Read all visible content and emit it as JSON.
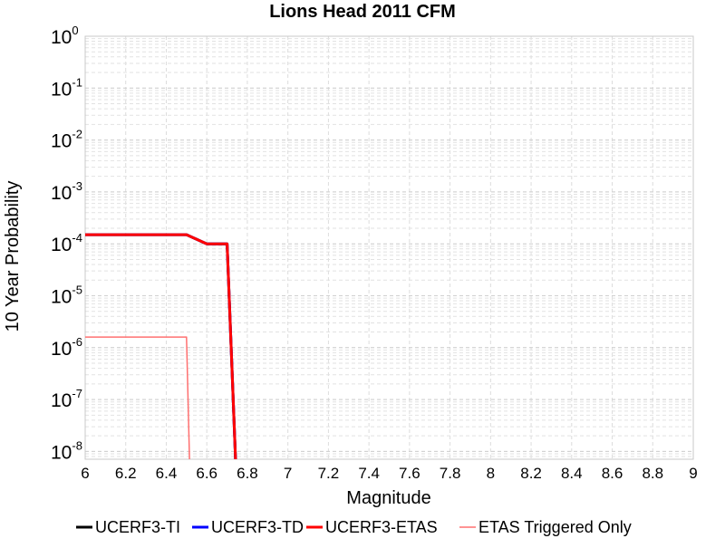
{
  "chart_data": {
    "type": "line",
    "title": "Lions Head 2011 CFM",
    "xlabel": "Magnitude",
    "ylabel": "10 Year Probability",
    "xlim": [
      6,
      9
    ],
    "ylim_log10": [
      -8.15,
      0
    ],
    "yscale": "log",
    "grid": true,
    "legend_position": "bottom",
    "x_ticks": [
      "6",
      "6.2",
      "6.4",
      "6.6",
      "6.8",
      "7",
      "7.2",
      "7.4",
      "7.6",
      "7.8",
      "8",
      "8.2",
      "8.4",
      "8.6",
      "8.8",
      "9"
    ],
    "y_ticks": [
      {
        "exp": 0,
        "base": "10",
        "sup": "0"
      },
      {
        "exp": -1,
        "base": "10",
        "sup": "-1"
      },
      {
        "exp": -2,
        "base": "10",
        "sup": "-2"
      },
      {
        "exp": -3,
        "base": "10",
        "sup": "-3"
      },
      {
        "exp": -4,
        "base": "10",
        "sup": "-4"
      },
      {
        "exp": -5,
        "base": "10",
        "sup": "-5"
      },
      {
        "exp": -6,
        "base": "10",
        "sup": "-6"
      },
      {
        "exp": -7,
        "base": "10",
        "sup": "-7"
      },
      {
        "exp": -8,
        "base": "10",
        "sup": "-8"
      }
    ],
    "series": [
      {
        "name": "UCERF3-TI",
        "color": "#000000",
        "width": 3,
        "x": [
          6.0,
          6.5,
          6.6,
          6.7,
          6.75
        ],
        "y": [
          0.00015,
          0.00015,
          0.0001,
          0.0001,
          1e-09
        ]
      },
      {
        "name": "UCERF3-TD",
        "color": "#0000ff",
        "width": 3,
        "x": [
          6.0,
          6.5,
          6.6,
          6.7,
          6.75
        ],
        "y": [
          0.00015,
          0.00015,
          0.0001,
          0.0001,
          1e-09
        ]
      },
      {
        "name": "UCERF3-ETAS",
        "color": "#ff0000",
        "width": 3,
        "x": [
          6.0,
          6.5,
          6.6,
          6.7,
          6.75
        ],
        "y": [
          0.00015,
          0.00015,
          0.0001,
          0.0001,
          1e-09
        ]
      },
      {
        "name": "ETAS Triggered Only",
        "color": "#ff7070",
        "width": 1.5,
        "x": [
          6.0,
          6.5,
          6.52
        ],
        "y": [
          1.6e-06,
          1.6e-06,
          1e-09
        ]
      }
    ]
  }
}
